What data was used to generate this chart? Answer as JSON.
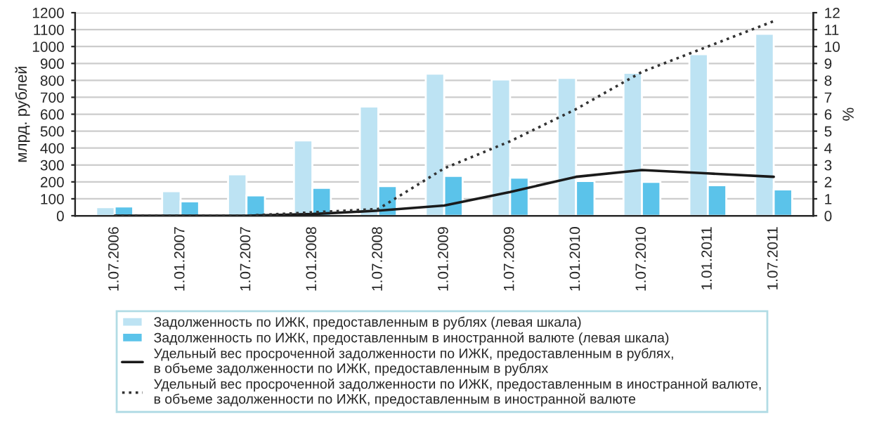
{
  "chart_data": {
    "type": "bar",
    "ylabel": "млрд. рублей",
    "y2label": "%",
    "categories": [
      "1.07.2006",
      "1.01.2007",
      "1.07.2007",
      "1.01.2008",
      "1.07.2008",
      "1.01.2009",
      "1.07.2009",
      "1.01.2010",
      "1.07.2010",
      "1.01.2011",
      "1.07.2011"
    ],
    "series": [
      {
        "name": "Задолженность по ИЖК, предоставленным в рублях (левая шкала)",
        "color": "#bde3f3",
        "values": [
          50,
          145,
          245,
          445,
          645,
          840,
          805,
          815,
          845,
          955,
          1075
        ]
      },
      {
        "name": "Задолженность по ИЖК, предоставленным в иностранной валюте (левая шкала)",
        "color": "#5bc3ea",
        "values": [
          55,
          85,
          120,
          165,
          175,
          235,
          225,
          205,
          200,
          180,
          155
        ]
      },
      {
        "name": "Удельный вес просроченной задолженности по ИЖК, предоставленным в рублях,\nв объеме задолженности по ИЖК, предоставленным в рублях",
        "type": "line",
        "axis": "y2",
        "color": "#1a1a1a",
        "line_style": "solid",
        "values": [
          0,
          0,
          0,
          0.1,
          0.3,
          0.6,
          1.4,
          2.3,
          2.7,
          2.5,
          2.3
        ]
      },
      {
        "name": "Удельный вес просроченной задолженности по ИЖК, предоставленным в иностранной валюте,\nв объеме задолженности по ИЖК, предоставленным в иностранной валюте",
        "type": "line",
        "axis": "y2",
        "color": "#333333",
        "line_style": "dotted",
        "values": [
          0,
          0,
          0,
          0.2,
          0.4,
          2.8,
          4.4,
          6.3,
          8.5,
          10.0,
          11.5
        ]
      }
    ],
    "ylim": [
      0,
      1200
    ],
    "yticks": [
      0,
      100,
      200,
      300,
      400,
      500,
      600,
      700,
      800,
      900,
      1000,
      1100,
      1200
    ],
    "y2lim": [
      0,
      12
    ],
    "y2ticks": [
      0,
      1,
      2,
      3,
      4,
      5,
      6,
      7,
      8,
      9,
      10,
      11,
      12
    ],
    "grid": "y",
    "legend": "bottom"
  }
}
